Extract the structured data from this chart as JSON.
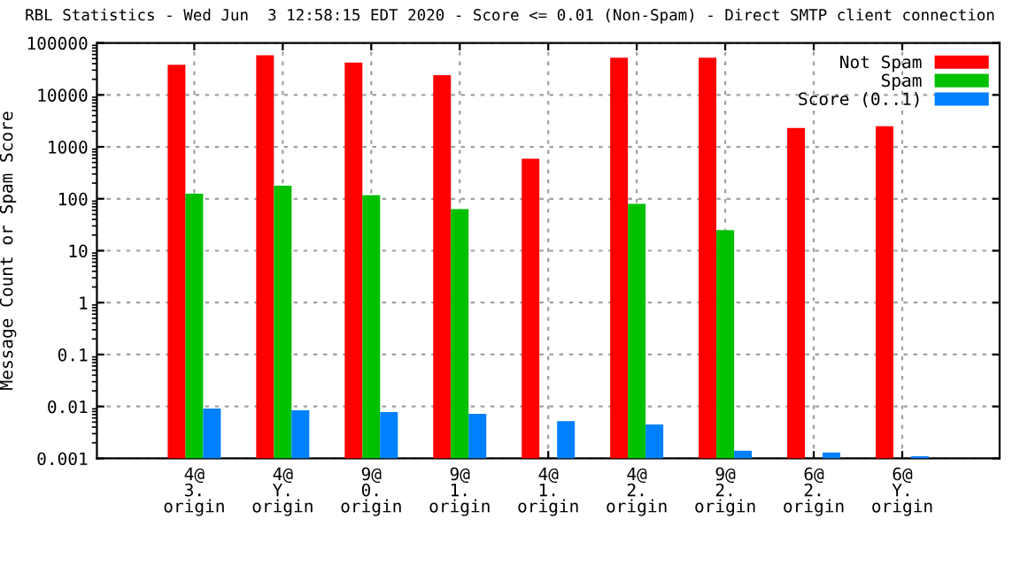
{
  "chart_data": {
    "type": "bar",
    "title": "RBL Statistics - Wed Jun  3 12:58:15 EDT 2020 - Score <= 0.01 (Non-Spam) - Direct SMTP client connection",
    "ylabel": "Message Count or Spam Score",
    "categories": [
      "4@\n3.\norigin",
      "4@\nY.\norigin",
      "9@\n0.\norigin",
      "9@\n1.\norigin",
      "4@\n1.\norigin",
      "4@\n2.\norigin",
      "9@\n2.\norigin",
      "6@\n2.\norigin",
      "6@\nY.\norigin"
    ],
    "series": [
      {
        "name": "Not Spam",
        "color": "#ff0000",
        "values": [
          38000,
          58000,
          42000,
          24000,
          590,
          52000,
          52000,
          2300,
          2500
        ]
      },
      {
        "name": "Spam",
        "color": "#00c000",
        "values": [
          126,
          178,
          117,
          63,
          null,
          80,
          25,
          null,
          null
        ]
      },
      {
        "name": "Score (0..1)",
        "color": "#0080ff",
        "values": [
          0.0091,
          0.0084,
          0.0078,
          0.0072,
          0.0052,
          0.0045,
          0.0014,
          0.0013,
          0.0011
        ]
      }
    ],
    "log": "y",
    "ylim": [
      0.001,
      100000
    ],
    "yticks": [
      0.001,
      0.01,
      0.1,
      1,
      10,
      100,
      1000,
      10000,
      100000
    ],
    "grid": true,
    "legend": "top right"
  }
}
